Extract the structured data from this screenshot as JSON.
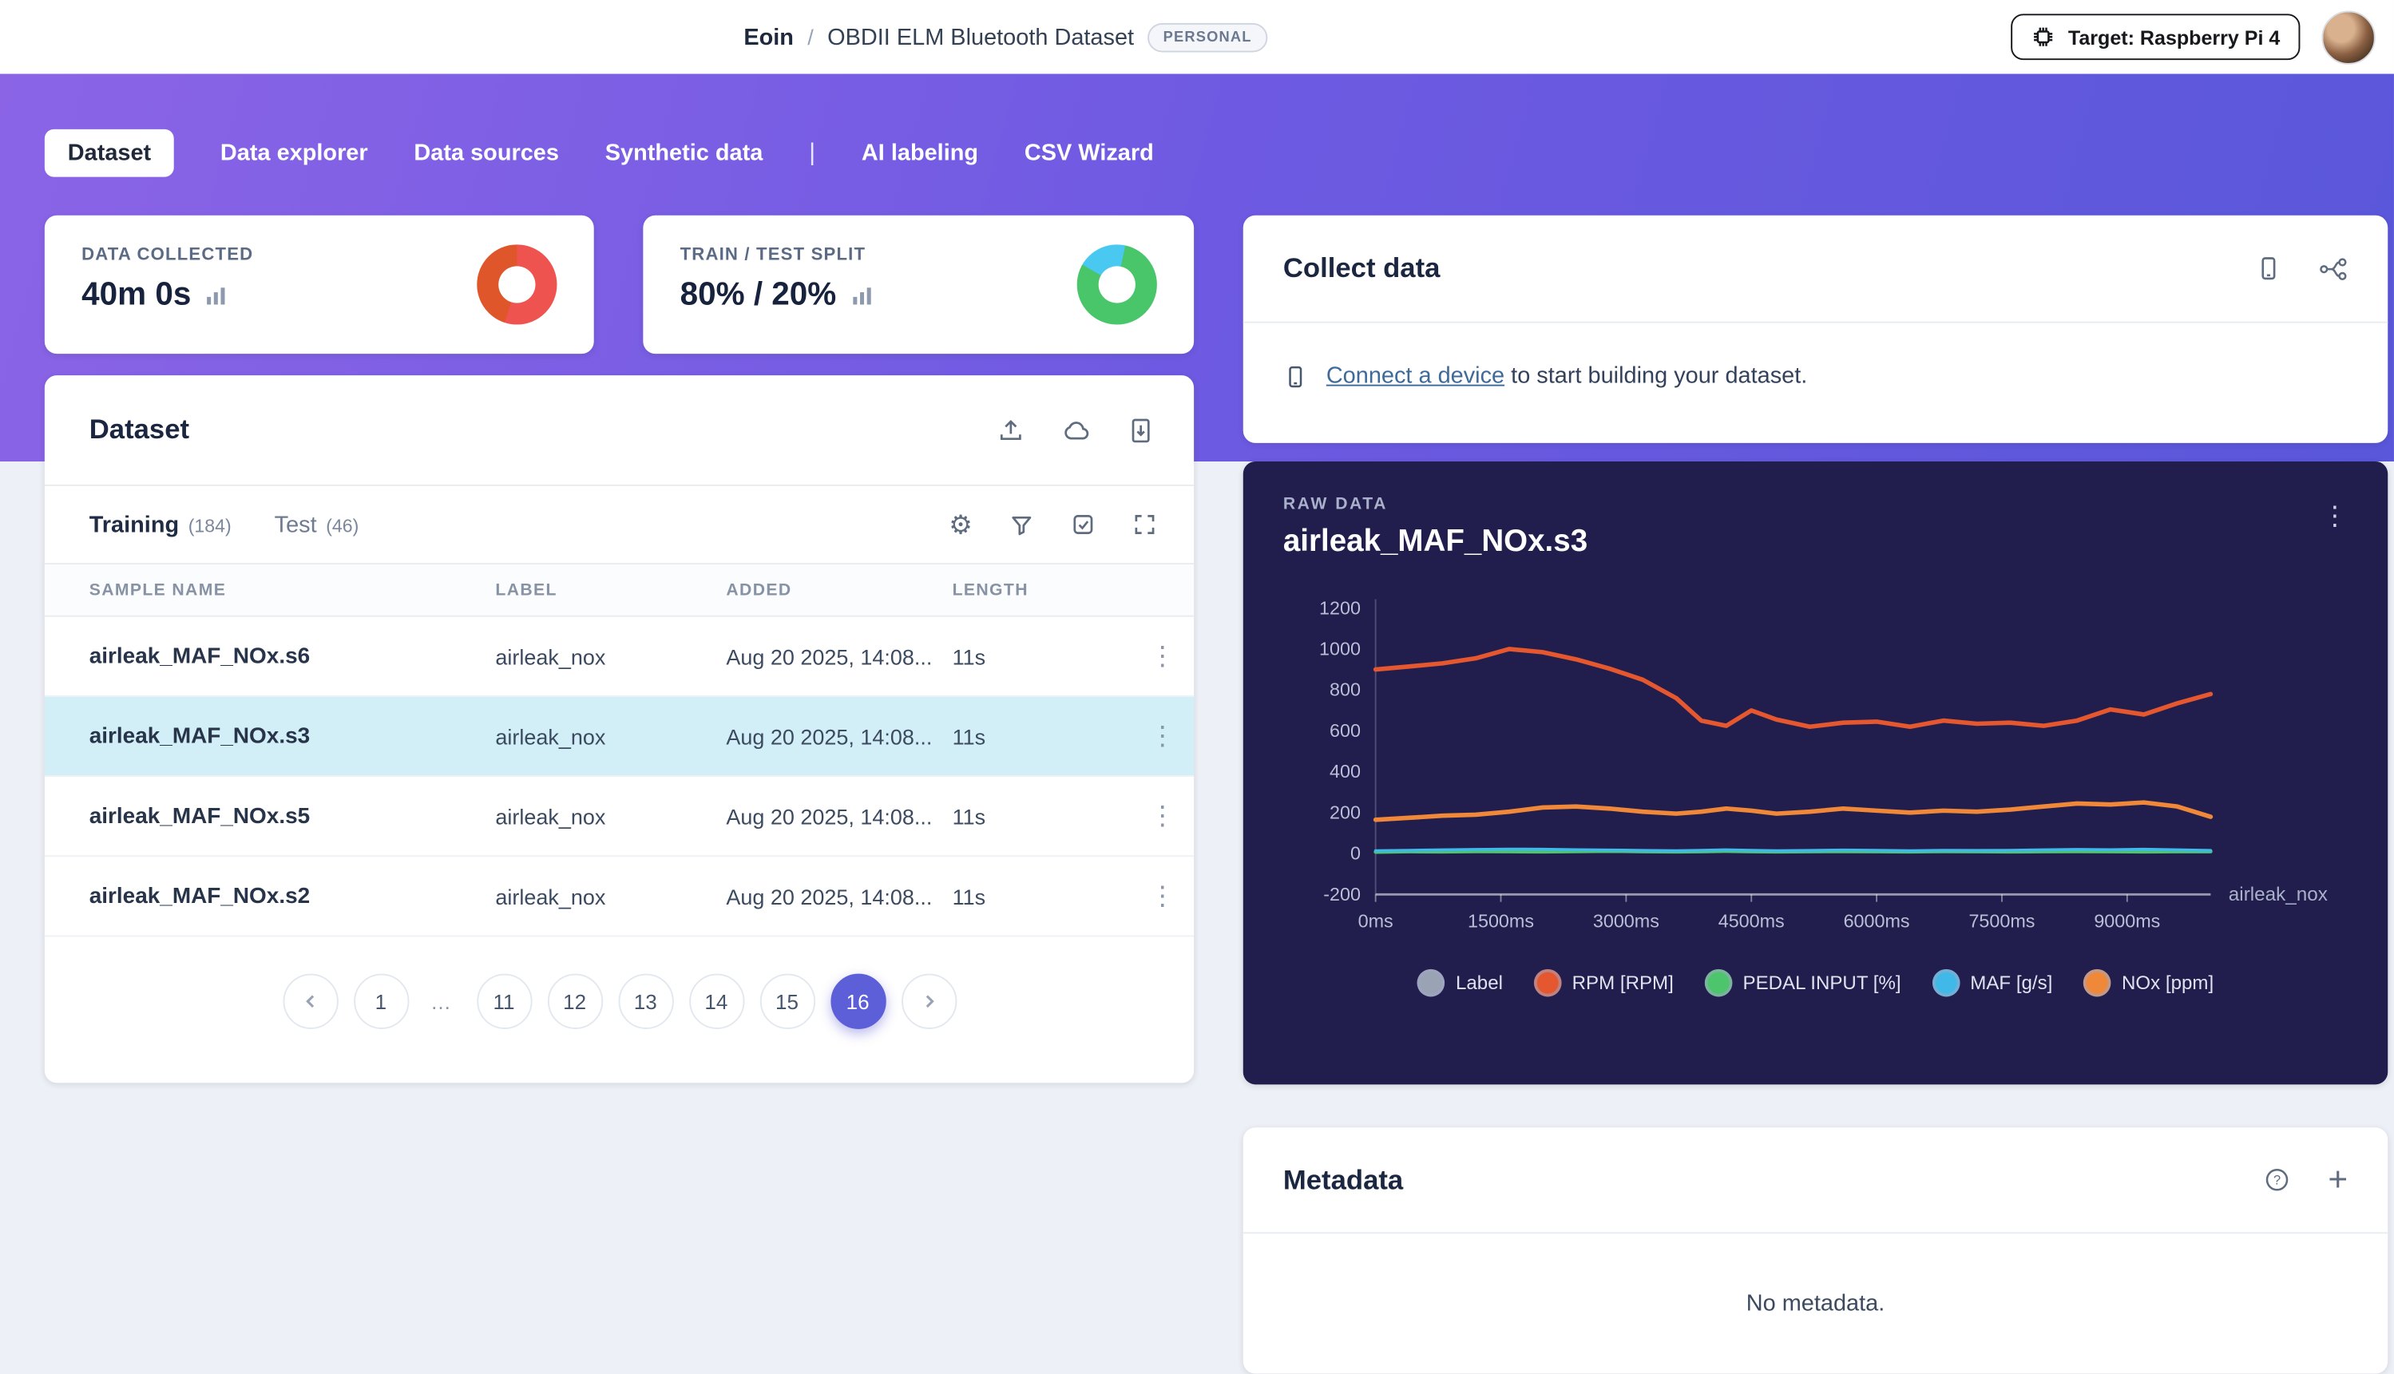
{
  "colors": {
    "hero_gradient_start": "#8b64e6",
    "hero_gradient_end": "#5a57da",
    "accent": "#5d5fd8",
    "selected_row": "#d2eff8",
    "raw_card_bg": "#211d4d",
    "donut_collected": [
      "#ef5350",
      "#e0562b"
    ],
    "donut_split": [
      "#49c9f2",
      "#49c56a"
    ]
  },
  "header": {
    "breadcrumb": {
      "user": "Eoin",
      "separator": "/",
      "project": "OBDII ELM Bluetooth Dataset",
      "badge": "PERSONAL"
    },
    "target_button": {
      "label": "Target: Raspberry Pi 4"
    }
  },
  "nav": {
    "tabs": [
      {
        "label": "Dataset",
        "active": true
      },
      {
        "label": "Data explorer",
        "active": false
      },
      {
        "label": "Data sources",
        "active": false
      },
      {
        "label": "Synthetic data",
        "active": false
      },
      {
        "label": "AI labeling",
        "active": false
      },
      {
        "label": "CSV Wizard",
        "active": false
      }
    ],
    "divider": "|"
  },
  "stats": {
    "data_collected": {
      "label": "DATA COLLECTED",
      "value": "40m 0s"
    },
    "train_test_split": {
      "label": "TRAIN / TEST SPLIT",
      "value": "80% / 20%"
    }
  },
  "collect_data": {
    "title": "Collect data",
    "link_text": "Connect a device",
    "rest_text": "to start building your dataset."
  },
  "dataset_panel": {
    "title": "Dataset",
    "tabs": {
      "training_label": "Training",
      "training_count": "(184)",
      "test_label": "Test",
      "test_count": "(46)"
    },
    "columns": [
      "SAMPLE NAME",
      "LABEL",
      "ADDED",
      "LENGTH"
    ],
    "rows": [
      {
        "name": "airleak_MAF_NOx.s6",
        "label": "airleak_nox",
        "added": "Aug 20 2025, 14:08...",
        "length": "11s",
        "selected": false
      },
      {
        "name": "airleak_MAF_NOx.s3",
        "label": "airleak_nox",
        "added": "Aug 20 2025, 14:08...",
        "length": "11s",
        "selected": true
      },
      {
        "name": "airleak_MAF_NOx.s5",
        "label": "airleak_nox",
        "added": "Aug 20 2025, 14:08...",
        "length": "11s",
        "selected": false
      },
      {
        "name": "airleak_MAF_NOx.s2",
        "label": "airleak_nox",
        "added": "Aug 20 2025, 14:08...",
        "length": "11s",
        "selected": false
      }
    ],
    "pagination": {
      "pages": [
        "1",
        "…",
        "11",
        "12",
        "13",
        "14",
        "15",
        "16"
      ],
      "active_page": "16"
    }
  },
  "raw_data": {
    "eyebrow": "RAW DATA",
    "title": "airleak_MAF_NOx.s3",
    "axis_label_right": "airleak_nox",
    "legend": [
      {
        "name": "Label",
        "color": "#9aa3b4"
      },
      {
        "name": "RPM [RPM]",
        "color": "#e4572f"
      },
      {
        "name": "PEDAL INPUT [%]",
        "color": "#4cc56d"
      },
      {
        "name": "MAF [g/s]",
        "color": "#41b9e8"
      },
      {
        "name": "NOx [ppm]",
        "color": "#f0883a"
      }
    ]
  },
  "chart_data": {
    "type": "line",
    "title": "airleak_MAF_NOx.s3",
    "x_unit": "ms",
    "xlabel": "",
    "ylabel": "",
    "grid": false,
    "legend_position": "bottom",
    "xlim": [
      0,
      10000
    ],
    "ylim": [
      -200,
      1200
    ],
    "xticks": [
      0,
      1500,
      3000,
      4500,
      6000,
      7500,
      9000
    ],
    "yticks": [
      1200,
      1000,
      800,
      600,
      400,
      200,
      0,
      -200
    ],
    "x": [
      0,
      400,
      800,
      1200,
      1600,
      2000,
      2400,
      2800,
      3200,
      3600,
      3900,
      4200,
      4500,
      4800,
      5200,
      5600,
      6000,
      6400,
      6800,
      7200,
      7600,
      8000,
      8400,
      8800,
      9200,
      9600,
      10000
    ],
    "series": [
      {
        "name": "Label",
        "color": "#9aa3b4",
        "values": []
      },
      {
        "name": "RPM [RPM]",
        "color": "#e4572f",
        "width": 3,
        "values": [
          900,
          915,
          930,
          955,
          1000,
          985,
          950,
          905,
          850,
          760,
          650,
          625,
          700,
          655,
          620,
          640,
          645,
          620,
          650,
          635,
          640,
          625,
          650,
          705,
          680,
          735,
          780
        ]
      },
      {
        "name": "PEDAL INPUT [%]",
        "color": "#4cc56d",
        "width": 2.5,
        "values": [
          8,
          10,
          9,
          11,
          10,
          9,
          11,
          12,
          10,
          9,
          10,
          12,
          10,
          9,
          10,
          11,
          10,
          9,
          11,
          10,
          9,
          10,
          11,
          10,
          9,
          10,
          10
        ]
      },
      {
        "name": "MAF [g/s]",
        "color": "#41b9e8",
        "width": 2,
        "values": [
          14,
          16,
          18,
          20,
          22,
          21,
          19,
          17,
          15,
          14,
          16,
          18,
          16,
          14,
          15,
          17,
          16,
          14,
          16,
          15,
          16,
          18,
          20,
          19,
          21,
          18,
          15
        ]
      },
      {
        "name": "NOx [ppm]",
        "color": "#f0883a",
        "width": 3,
        "values": [
          165,
          175,
          185,
          190,
          205,
          225,
          230,
          220,
          205,
          195,
          205,
          220,
          210,
          195,
          205,
          220,
          210,
          200,
          210,
          205,
          215,
          230,
          245,
          240,
          250,
          230,
          180
        ]
      }
    ]
  },
  "metadata": {
    "title": "Metadata",
    "empty_text": "No metadata."
  }
}
